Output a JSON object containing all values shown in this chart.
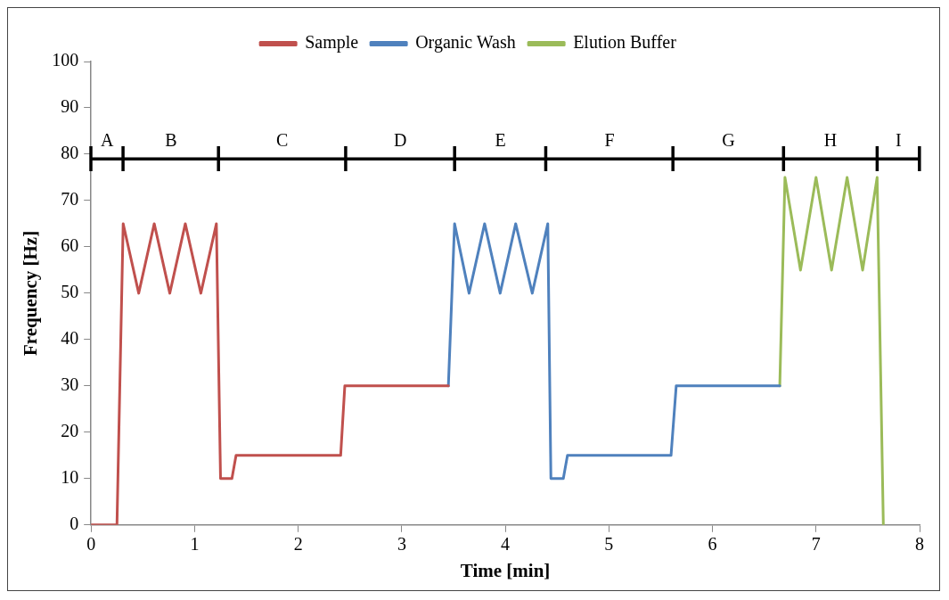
{
  "chart_data": {
    "type": "line",
    "xlabel": "Time [min]",
    "ylabel": "Frequency [Hz]",
    "xlim": [
      0,
      8
    ],
    "xticks": [
      0,
      1,
      2,
      3,
      4,
      5,
      6,
      7,
      8
    ],
    "ylim": [
      0,
      100
    ],
    "yticks": [
      0,
      10,
      20,
      30,
      40,
      50,
      60,
      70,
      80,
      90,
      100
    ],
    "grid": false,
    "legend": "top",
    "marker": "none",
    "line_style": "solid",
    "series": [
      {
        "name": "Sample",
        "color": "#c0504d",
        "x": [
          0,
          0.25,
          0.31,
          0.46,
          0.61,
          0.76,
          0.91,
          1.06,
          1.21,
          1.25,
          1.36,
          1.4,
          2.41,
          2.45,
          3.45
        ],
        "values": [
          0,
          0,
          65,
          50,
          65,
          50,
          65,
          50,
          65,
          10,
          10,
          15,
          15,
          30,
          30
        ]
      },
      {
        "name": "Organic Wash",
        "color": "#4f81bd",
        "x": [
          3.45,
          3.51,
          3.65,
          3.8,
          3.95,
          4.1,
          4.26,
          4.41,
          4.44,
          4.56,
          4.6,
          5.6,
          5.65,
          6.65
        ],
        "values": [
          30,
          65,
          50,
          65,
          50,
          65,
          50,
          65,
          10,
          10,
          15,
          15,
          30,
          30
        ]
      },
      {
        "name": "Elution Buffer",
        "color": "#9bbb59",
        "x": [
          6.65,
          6.7,
          6.85,
          7,
          7.15,
          7.3,
          7.45,
          7.59,
          7.65
        ],
        "values": [
          30,
          75,
          55,
          75,
          55,
          75,
          55,
          75,
          0
        ]
      }
    ],
    "ref_lines": [
      {
        "axis": "y",
        "value": 79,
        "color": "#000000"
      }
    ],
    "annotations": [
      "A",
      "B",
      "C",
      "D",
      "E",
      "F",
      "G",
      "H",
      "I"
    ]
  }
}
